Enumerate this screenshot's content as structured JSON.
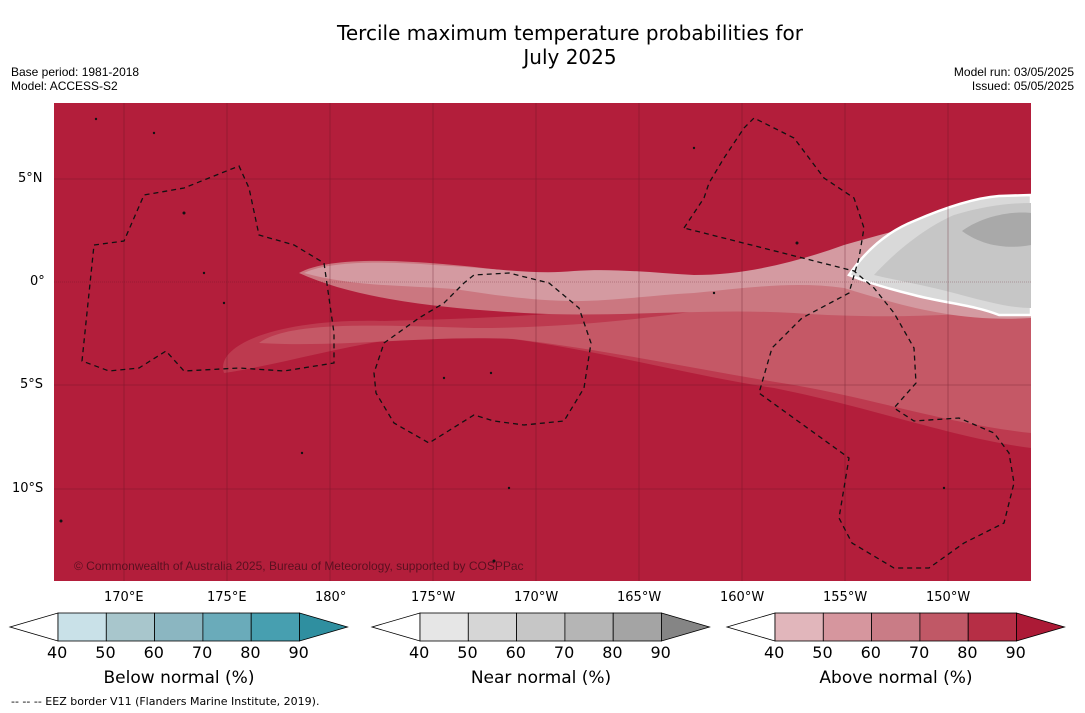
{
  "title_line1": "Tercile maximum temperature probabilities for",
  "title_line2": "July 2025",
  "meta_left": {
    "base_period": "Base period: 1981-2018",
    "model": "Model: ACCESS-S2"
  },
  "meta_right": {
    "model_run": "Model run: 03/05/2025",
    "issued": "Issued: 05/05/2025"
  },
  "lat_labels": [
    "5°N",
    "0°",
    "5°S",
    "10°S"
  ],
  "lon_labels": [
    "170°E",
    "175°E",
    "180°",
    "175°W",
    "170°W",
    "165°W",
    "160°W",
    "155°W",
    "150°W"
  ],
  "copyright": "© Commonwealth of Australia 2025, Bureau of Meteorology, supported by COSPPac",
  "colorbars": [
    {
      "title": "Below normal (%)",
      "ticks": [
        "40",
        "50",
        "60",
        "70",
        "80",
        "90"
      ],
      "colors": [
        "#ffffff",
        "#c9e1e8",
        "#a8c6cc",
        "#8bb6c1",
        "#6aabba",
        "#479fb0",
        "#2f8fa0"
      ]
    },
    {
      "title": "Near normal (%)",
      "ticks": [
        "40",
        "50",
        "60",
        "70",
        "80",
        "90"
      ],
      "colors": [
        "#ffffff",
        "#e6e6e6",
        "#d6d6d6",
        "#c6c6c6",
        "#b5b5b5",
        "#a4a4a4",
        "#858585"
      ]
    },
    {
      "title": "Above normal (%)",
      "ticks": [
        "40",
        "50",
        "60",
        "70",
        "80",
        "90"
      ],
      "colors": [
        "#ffffff",
        "#e1b6bb",
        "#d6969e",
        "#c97c86",
        "#c05866",
        "#b62e45",
        "#ac1a36"
      ]
    }
  ],
  "map_colors": {
    "above_90": "#b31e3b",
    "above_80": "#bd3a4f",
    "above_70": "#c55866",
    "above_60": "#cb7780",
    "above_50": "#d49aa1",
    "near_50": "#d9d9d9",
    "near_60": "#c6c6c6",
    "near_70": "#a9a9a9"
  },
  "footnote": "--  --  -- EEZ border V11 (Flanders Marine Institute, 2019)."
}
